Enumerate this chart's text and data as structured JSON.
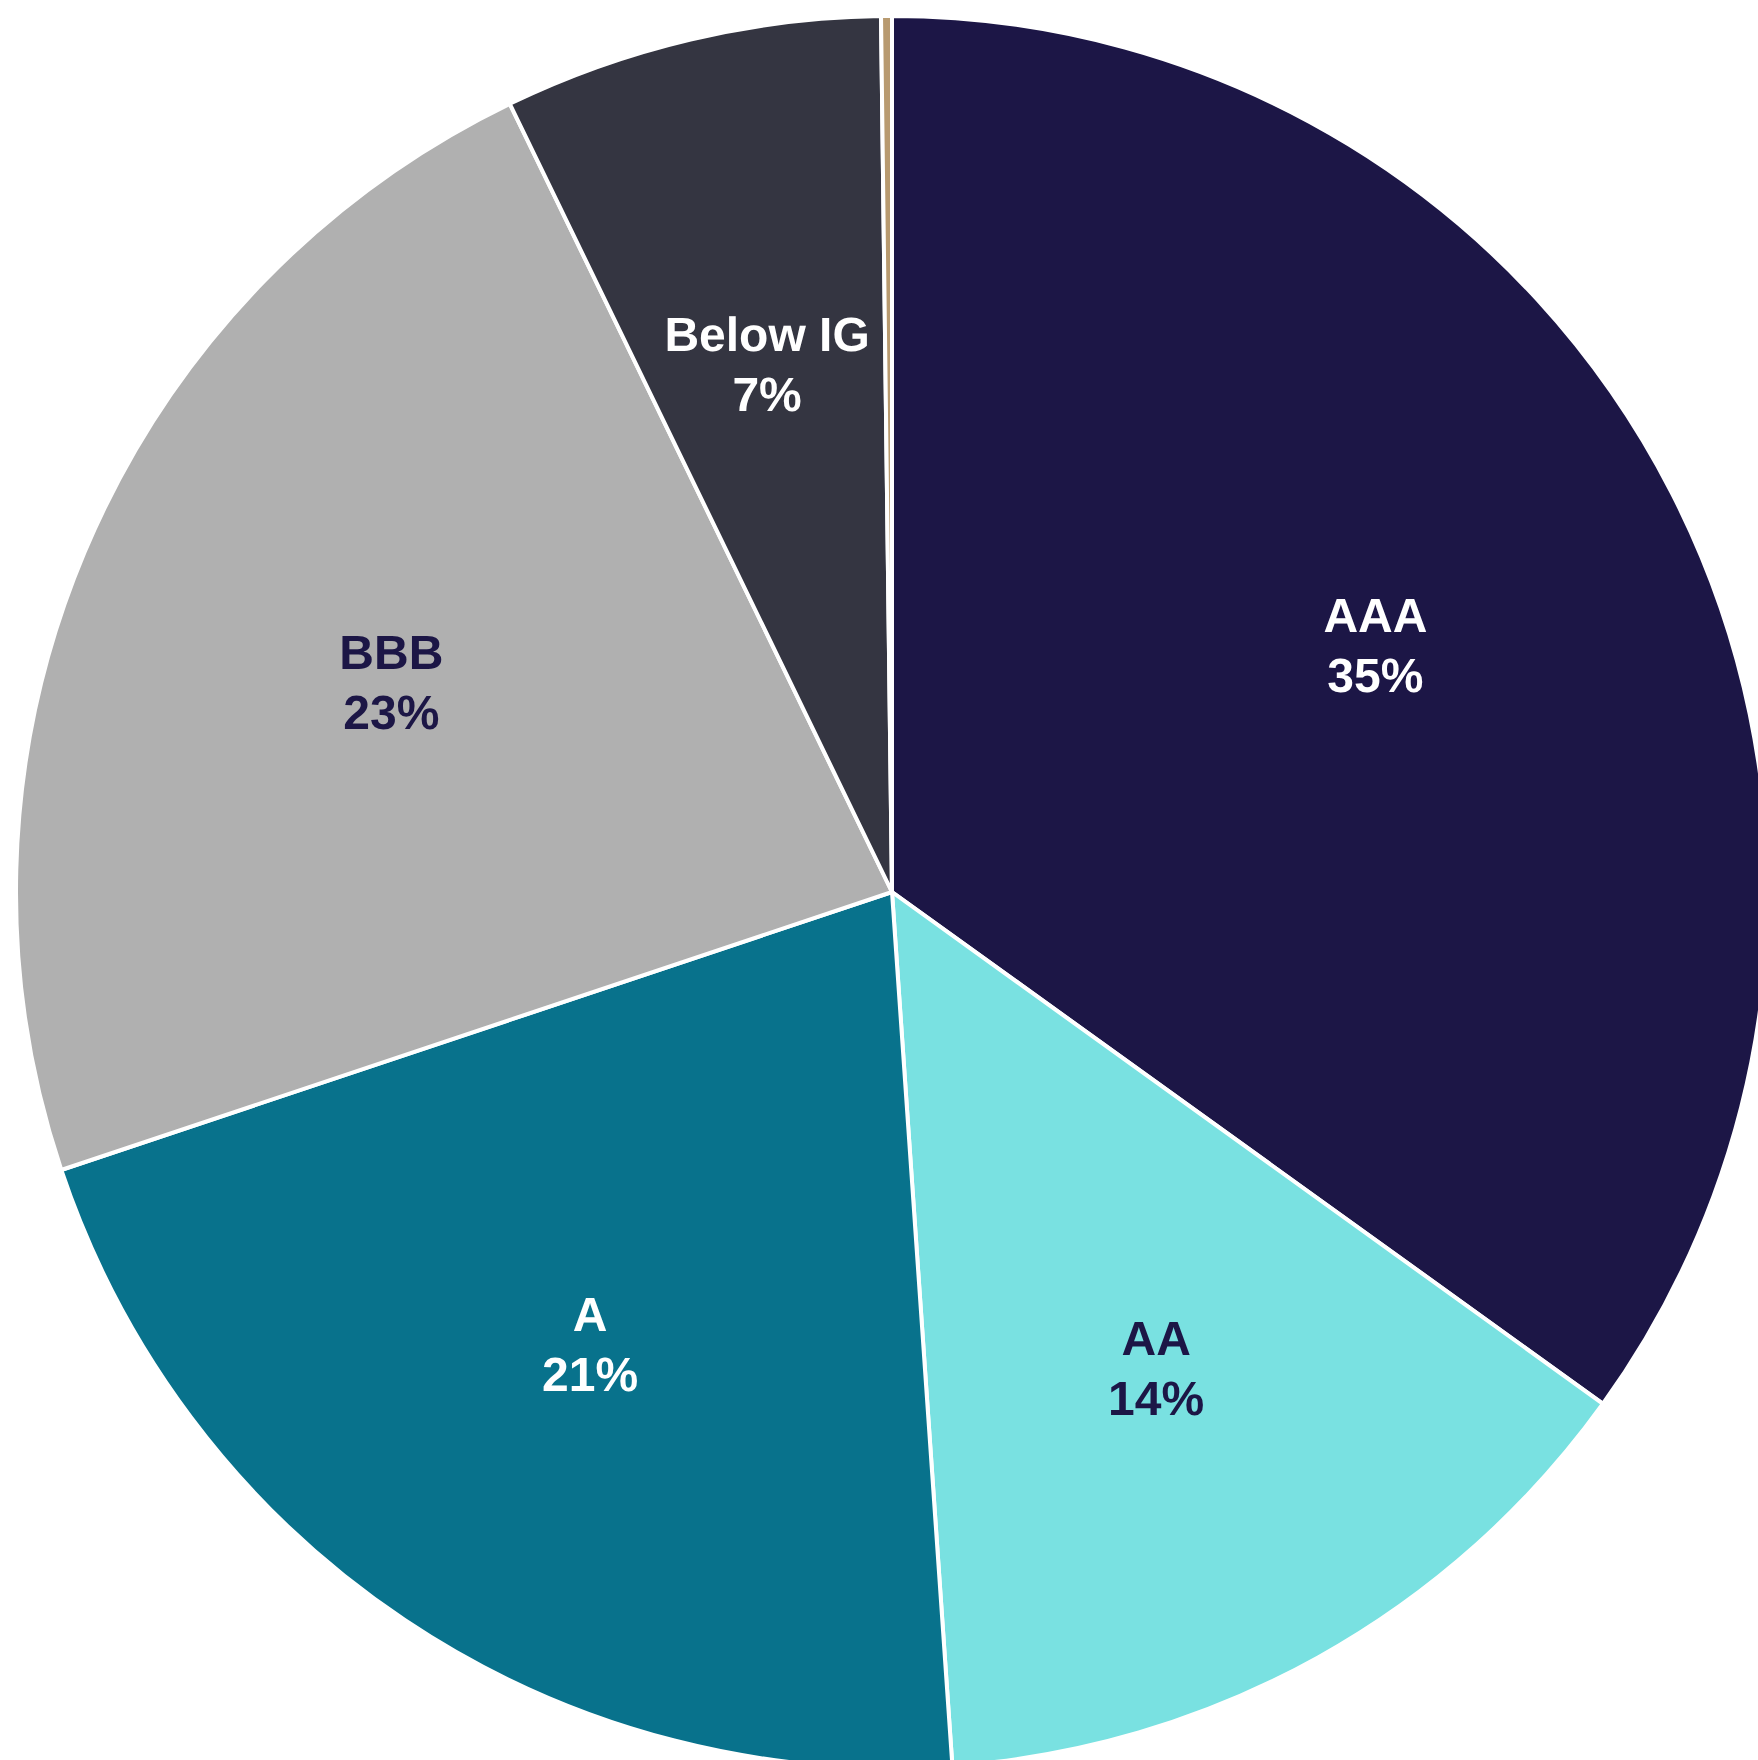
{
  "chart_data": {
    "type": "pie",
    "categories": [
      "AAA",
      "AA",
      "A",
      "BBB",
      "Below IG",
      null
    ],
    "values": [
      35,
      14,
      21,
      23,
      7,
      0.2
    ],
    "value_labels": [
      "35%",
      "14%",
      "21%",
      "23%",
      "7%",
      null
    ],
    "colors": [
      "#1c1646",
      "#79e1e1",
      "#08728c",
      "#b0b0b0",
      "#343541",
      "#b89a70"
    ]
  }
}
